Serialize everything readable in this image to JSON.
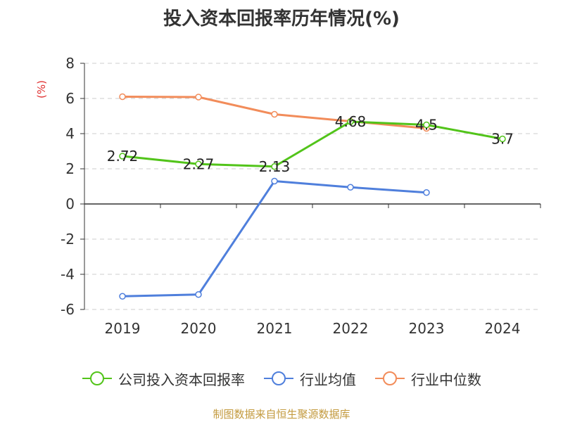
{
  "title": "投入资本回报率历年情况(%)",
  "source": "制图数据来自恒生聚源数据库",
  "chart_data": {
    "type": "line",
    "title": "投入资本回报率历年情况(%)",
    "ylabel": "(%)",
    "xlabel": "",
    "categories": [
      "2019",
      "2020",
      "2021",
      "2022",
      "2023",
      "2024"
    ],
    "ylim": [
      -6,
      8
    ],
    "yticks": [
      -6,
      -4,
      -2,
      0,
      2,
      4,
      6,
      8
    ],
    "grid": true,
    "legend_position": "bottom",
    "series": [
      {
        "name": "公司投入资本回报率",
        "color": "#52c41a",
        "values": [
          2.72,
          2.27,
          2.13,
          4.68,
          4.5,
          3.7
        ],
        "labels": [
          "2.72",
          "2.27",
          "2.13",
          "4.68",
          "4.5",
          "3.7"
        ]
      },
      {
        "name": "行业均值",
        "color": "#4f7fdc",
        "values": [
          -5.25,
          -5.15,
          1.3,
          0.95,
          0.65,
          null
        ]
      },
      {
        "name": "行业中位数",
        "color": "#f28c5a",
        "values": [
          6.1,
          6.08,
          5.1,
          4.7,
          4.3,
          null
        ]
      }
    ],
    "colors": {
      "axis": "#333333",
      "grid": "#cccccc",
      "ylabel": "#e03030"
    }
  }
}
